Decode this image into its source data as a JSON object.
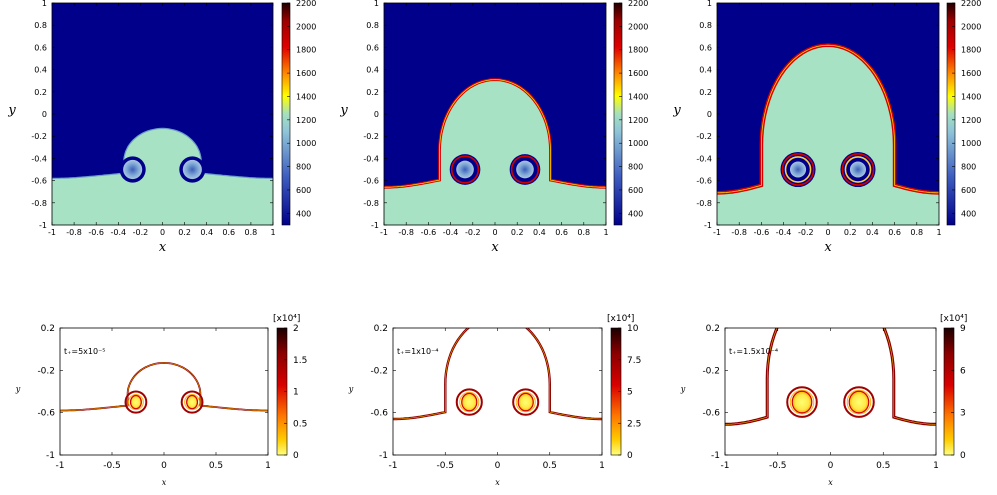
{
  "chart_data": [
    {
      "type": "heatmap",
      "xlabel": "x",
      "ylabel": "y",
      "xlim": [
        -1,
        1
      ],
      "ylim": [
        -1,
        1
      ],
      "xticks": [
        "-1",
        "-0.8",
        "-0.6",
        "-0.4",
        "-0.2",
        "0",
        "0.2",
        "0.4",
        "0.6",
        "0.8",
        "1"
      ],
      "yticks": [
        "-1",
        "-0.8",
        "-0.6",
        "-0.4",
        "-0.2",
        "0",
        "0.2",
        "0.4",
        "0.6",
        "0.8",
        "1"
      ],
      "colorbar_ticks": [
        "400",
        "600",
        "800",
        "1000",
        "1200",
        "1400",
        "1600",
        "1800",
        "2000",
        "2200"
      ],
      "colorbar_range": [
        300,
        2200
      ],
      "interface": {
        "level": -0.55,
        "amplitude": 0.03,
        "cap_center": [
          0,
          -0.45
        ],
        "cap_rx": 0.35,
        "cap_ry": 0.15,
        "bubbles": [
          [
            -0.27,
            -0.5,
            0.1
          ],
          [
            0.27,
            -0.5,
            0.1
          ]
        ]
      }
    },
    {
      "type": "heatmap",
      "xlabel": "x",
      "ylabel": "y",
      "xlim": [
        -1,
        1
      ],
      "ylim": [
        -1,
        1
      ],
      "xticks": [
        "-1",
        "-0.8",
        "-0.6",
        "-0.4",
        "-0.2",
        "0",
        "0.2",
        "0.4",
        "0.6",
        "0.8",
        "1"
      ],
      "yticks": [
        "-1",
        "-0.8",
        "-0.6",
        "-0.4",
        "-0.2",
        "0",
        "0.2",
        "0.4",
        "0.6",
        "0.8",
        "1"
      ],
      "colorbar_ticks": [
        "400",
        "600",
        "800",
        "1000",
        "1200",
        "1400",
        "1600",
        "1800",
        "2000",
        "2200"
      ],
      "colorbar_range": [
        300,
        2200
      ],
      "interface": {
        "level": -0.6,
        "amplitude": 0.06,
        "cap_center": [
          0,
          -0.35
        ],
        "cap_rx": 0.5,
        "cap_ry": 0.32,
        "bubbles": [
          [
            -0.27,
            -0.5,
            0.12
          ],
          [
            0.27,
            -0.5,
            0.12
          ]
        ]
      }
    },
    {
      "type": "heatmap",
      "xlabel": "x",
      "ylabel": "y",
      "xlim": [
        -1,
        1
      ],
      "ylim": [
        -1,
        1
      ],
      "xticks": [
        "-1",
        "-0.8",
        "-0.6",
        "-0.4",
        "-0.2",
        "0",
        "0.2",
        "0.4",
        "0.6",
        "0.8",
        "1"
      ],
      "yticks": [
        "-1",
        "-0.8",
        "-0.6",
        "-0.4",
        "-0.2",
        "0",
        "0.2",
        "0.4",
        "0.6",
        "0.8",
        "1"
      ],
      "colorbar_ticks": [
        "400",
        "600",
        "800",
        "1000",
        "1200",
        "1400",
        "1600",
        "1800",
        "2000",
        "2200"
      ],
      "colorbar_range": [
        300,
        2200
      ],
      "interface": {
        "level": -0.62,
        "amplitude": 0.09,
        "cap_center": [
          0,
          -0.3
        ],
        "cap_rx": 0.6,
        "cap_ry": 0.45,
        "bubbles": [
          [
            -0.27,
            -0.5,
            0.14
          ],
          [
            0.27,
            -0.5,
            0.14
          ]
        ]
      }
    },
    {
      "type": "heatmap",
      "annotation": "t₊=5x10⁻⁵",
      "xlabel": "x",
      "ylabel": "y",
      "xlim": [
        -1,
        1
      ],
      "ylim": [
        -1,
        0.2
      ],
      "xticks": [
        "-1",
        "-0.5",
        "0",
        "0.5",
        "1"
      ],
      "yticks": [
        "-1",
        "-0.6",
        "-0.2",
        "0.2"
      ],
      "colorbar_multiplier": "[x10⁴]",
      "colorbar_ticks": [
        "0",
        "0.5",
        "1",
        "1.5",
        "2"
      ],
      "colorbar_range": [
        0,
        2
      ],
      "interface": {
        "level": -0.55,
        "amplitude": 0.03,
        "cap_center": [
          0,
          -0.45
        ],
        "cap_rx": 0.35,
        "cap_ry": 0.15,
        "bubbles": [
          [
            -0.27,
            -0.5,
            0.1
          ],
          [
            0.27,
            -0.5,
            0.1
          ]
        ]
      }
    },
    {
      "type": "heatmap",
      "annotation": "t₊=1x10⁻⁴",
      "xlabel": "x",
      "ylabel": "y",
      "xlim": [
        -1,
        1
      ],
      "ylim": [
        -1,
        0.2
      ],
      "xticks": [
        "-1",
        "-0.5",
        "0",
        "0.5",
        "1"
      ],
      "yticks": [
        "-1",
        "-0.6",
        "-0.2",
        "0.2"
      ],
      "colorbar_multiplier": "[x10⁴]",
      "colorbar_ticks": [
        "0",
        "2.5",
        "5",
        "7.5",
        "10"
      ],
      "colorbar_range": [
        0,
        10
      ],
      "interface": {
        "level": -0.6,
        "amplitude": 0.06,
        "cap_center": [
          0,
          -0.35
        ],
        "cap_rx": 0.5,
        "cap_ry": 0.32,
        "bubbles": [
          [
            -0.27,
            -0.5,
            0.12
          ],
          [
            0.27,
            -0.5,
            0.12
          ]
        ]
      }
    },
    {
      "type": "heatmap",
      "annotation": "t₊=1.5x10⁻⁴",
      "xlabel": "x",
      "ylabel": "y",
      "xlim": [
        -1,
        1
      ],
      "ylim": [
        -1,
        0.2
      ],
      "xticks": [
        "-1",
        "-0.5",
        "0",
        "0.5",
        "1"
      ],
      "yticks": [
        "-1",
        "-0.6",
        "-0.2",
        "0.2"
      ],
      "colorbar_multiplier": "[x10⁴]",
      "colorbar_ticks": [
        "0",
        "3",
        "6",
        "9"
      ],
      "colorbar_range": [
        0,
        9
      ],
      "interface": {
        "level": -0.62,
        "amplitude": 0.09,
        "cap_center": [
          0,
          -0.3
        ],
        "cap_rx": 0.6,
        "cap_ry": 0.45,
        "bubbles": [
          [
            -0.27,
            -0.5,
            0.14
          ],
          [
            0.27,
            -0.5,
            0.14
          ]
        ]
      }
    }
  ]
}
